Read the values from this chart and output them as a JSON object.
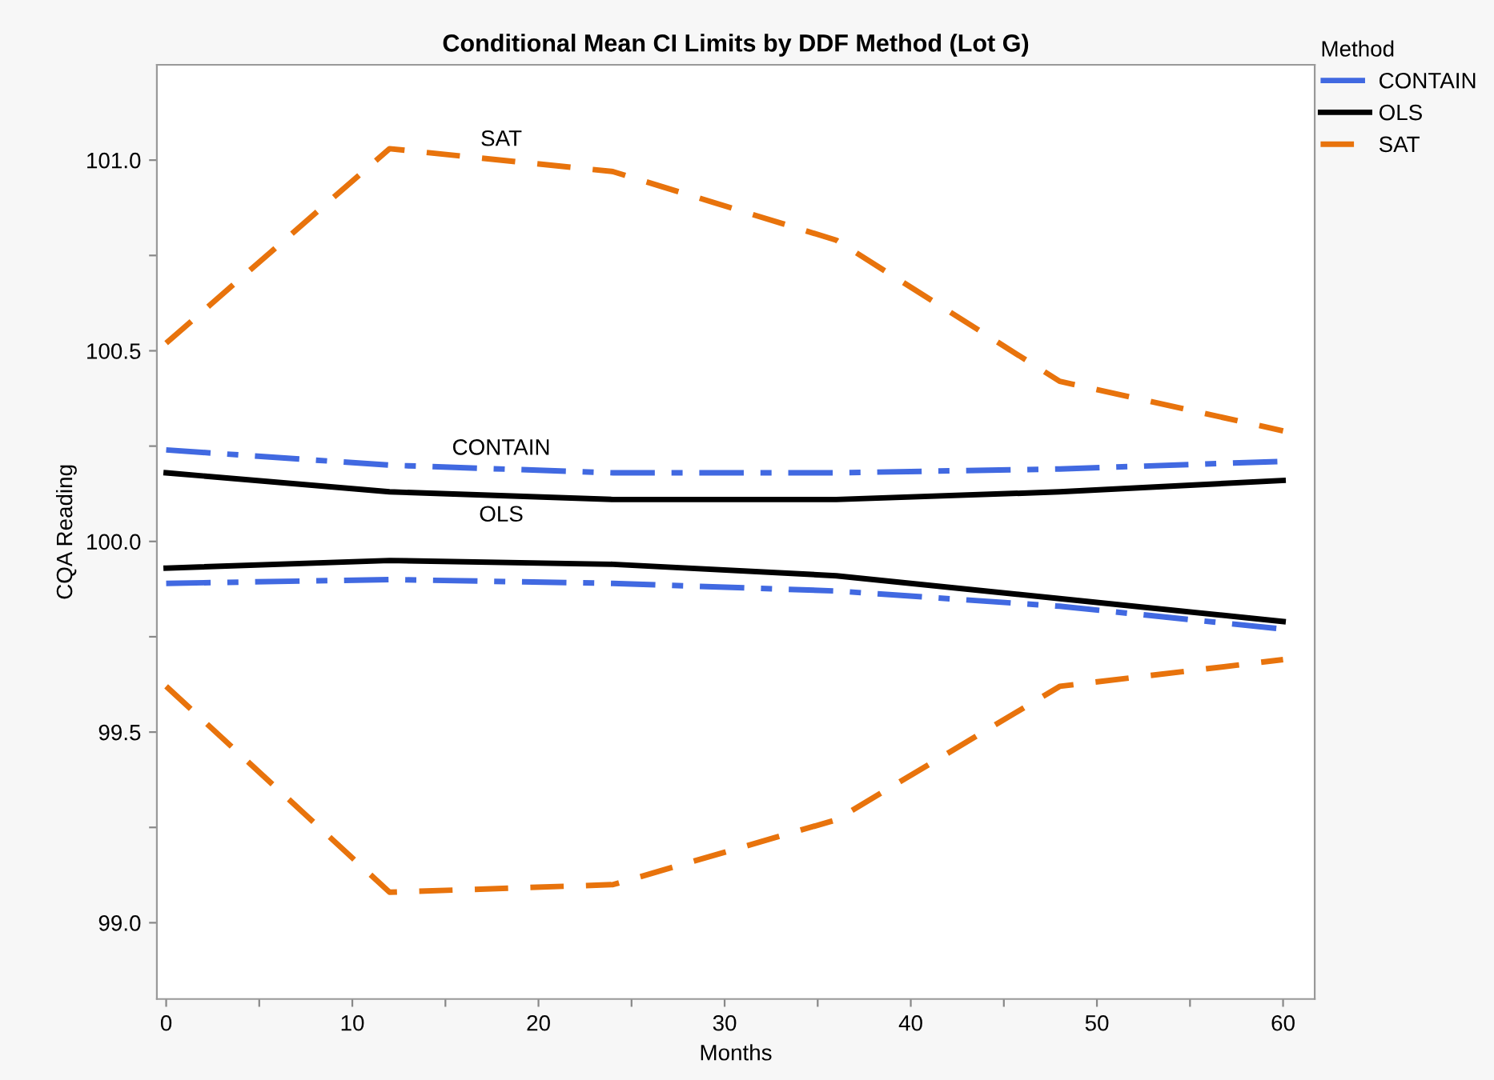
{
  "chart_data": {
    "type": "line",
    "title": "Conditional Mean CI Limits by DDF Method (Lot G)",
    "xlabel": "Months",
    "ylabel": "CQA Reading",
    "legend_title": "Method",
    "legend": "top right",
    "grid": false,
    "marker": "none",
    "x": [
      0,
      12,
      24,
      36,
      48,
      60
    ],
    "series": [
      {
        "name": "CONTAIN",
        "color": "#4169e1",
        "line_style": "dashdot",
        "values": [
          100.24,
          100.2,
          100.18,
          100.18,
          100.19,
          100.21
        ]
      },
      {
        "color": "#4169e1",
        "line_style": "dashdot",
        "values": [
          99.89,
          99.9,
          99.89,
          99.87,
          99.83,
          99.77
        ]
      },
      {
        "name": "OLS",
        "color": "#000000",
        "line_style": "solid",
        "values": [
          100.18,
          100.13,
          100.11,
          100.11,
          100.13,
          100.16
        ]
      },
      {
        "color": "#000000",
        "line_style": "solid",
        "values": [
          99.93,
          99.95,
          99.94,
          99.91,
          99.85,
          99.79
        ]
      },
      {
        "name": "SAT",
        "color": "#e8730c",
        "line_style": "dashed",
        "values": [
          100.52,
          101.03,
          100.97,
          100.79,
          100.42,
          100.29
        ]
      },
      {
        "color": "#e8730c",
        "line_style": "dashed",
        "values": [
          99.62,
          99.08,
          99.1,
          99.27,
          99.62,
          99.69
        ]
      }
    ],
    "xlim": [
      -0.5,
      61.7
    ],
    "ylim": [
      98.8,
      101.25
    ],
    "xticks": [
      0,
      {
        "value": 5,
        "label": null
      },
      10,
      {
        "value": 15,
        "label": null
      },
      20,
      {
        "value": 25,
        "label": null
      },
      30,
      {
        "value": 35,
        "label": null
      },
      40,
      {
        "value": 45,
        "label": null
      },
      50,
      {
        "value": 55,
        "label": null
      },
      60
    ],
    "yticks": [
      {
        "value": 99.0,
        "label": "99.0"
      },
      {
        "value": 99.25,
        "label": null
      },
      99.5,
      {
        "value": 99.75,
        "label": null
      },
      {
        "value": 100.0,
        "label": "100.0"
      },
      {
        "value": 100.25,
        "label": null
      },
      100.5,
      {
        "value": 100.75,
        "label": null
      },
      {
        "value": 101.0,
        "label": "101.0"
      }
    ]
  }
}
